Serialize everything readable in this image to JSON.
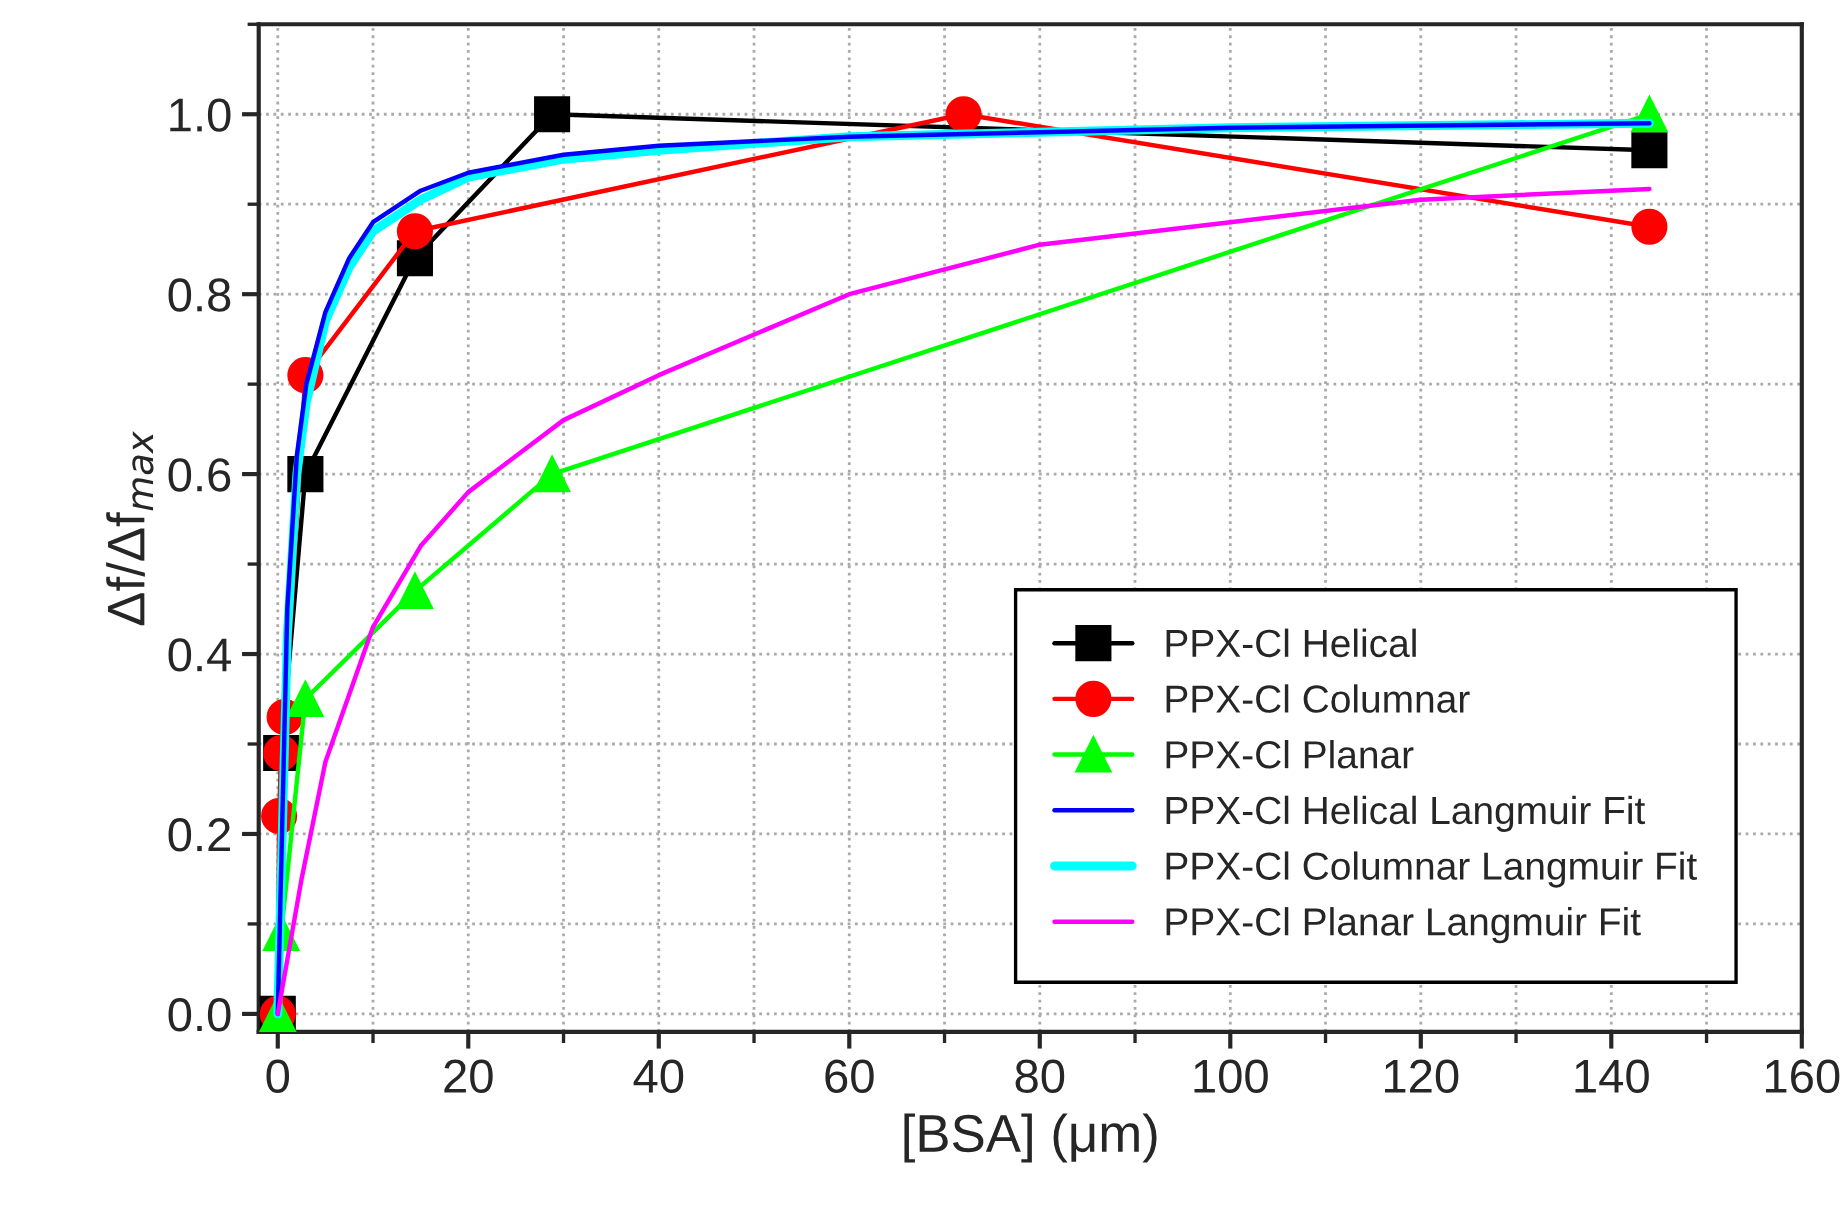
{
  "chart_data": {
    "type": "line",
    "xlabel": "[BSA] (μm)",
    "ylabel": "Δf/Δf$_{max}$",
    "xlim": [
      -2,
      160
    ],
    "ylim": [
      -0.02,
      1.1
    ],
    "xticks": [
      0,
      20,
      40,
      60,
      80,
      100,
      120,
      140,
      160
    ],
    "yticks": [
      {
        "value": 0,
        "label": "0.0"
      },
      {
        "value": 0.2,
        "label": "0.2"
      },
      {
        "value": 0.4,
        "label": "0.4"
      },
      {
        "value": 0.6,
        "label": "0.6"
      },
      {
        "value": 0.8,
        "label": "0.8"
      },
      {
        "value": 1.0,
        "label": "1.0"
      }
    ],
    "grid": true,
    "legend": "bottom right",
    "series": [
      {
        "name": "PPX-Cl Helical",
        "color": "#000000",
        "marker": "square",
        "x": [
          0,
          0.36,
          2.9,
          14.4,
          28.8,
          144
        ],
        "values": [
          0,
          0.29,
          0.6,
          0.84,
          1.0,
          0.96
        ]
      },
      {
        "name": "PPX-Cl Columnar",
        "color": "#ff0000",
        "marker": "circle",
        "x": [
          0,
          0.14,
          0.36,
          0.72,
          2.9,
          14.4,
          72,
          144
        ],
        "values": [
          0,
          0.22,
          0.29,
          0.33,
          0.71,
          0.87,
          1.0,
          0.875
        ]
      },
      {
        "name": "PPX-Cl Planar",
        "color": "#00ff00",
        "marker": "triangle",
        "x": [
          0,
          0.36,
          2.9,
          14.4,
          28.8,
          144
        ],
        "values": [
          0,
          0.09,
          0.35,
          0.47,
          0.6,
          1.0
        ]
      },
      {
        "name": "PPX-Cl Helical Langmuir Fit",
        "color": "#0000ff",
        "marker": "none",
        "x": [
          0,
          1,
          2,
          3,
          5,
          7.5,
          10,
          15,
          20,
          30,
          40,
          60,
          80,
          100,
          144
        ],
        "values": [
          0,
          0.45,
          0.62,
          0.7,
          0.78,
          0.84,
          0.88,
          0.915,
          0.935,
          0.955,
          0.965,
          0.975,
          0.98,
          0.985,
          0.99
        ]
      },
      {
        "name": "PPX-Cl Columnar Langmuir Fit",
        "color": "#00ffff",
        "marker": "none",
        "x": [
          0,
          1,
          2,
          3,
          5,
          7.5,
          10,
          15,
          20,
          30,
          40,
          60,
          80,
          100,
          144
        ],
        "values": [
          0,
          0.42,
          0.6,
          0.68,
          0.77,
          0.83,
          0.87,
          0.905,
          0.93,
          0.95,
          0.96,
          0.975,
          0.98,
          0.985,
          0.99
        ]
      },
      {
        "name": "PPX-Cl Planar Langmuir Fit",
        "color": "#ff00ff",
        "marker": "none",
        "x": [
          0,
          1,
          2.5,
          5,
          10,
          15,
          20,
          30,
          40,
          60,
          80,
          100,
          120,
          144
        ],
        "values": [
          0,
          0.06,
          0.15,
          0.28,
          0.43,
          0.52,
          0.58,
          0.66,
          0.71,
          0.8,
          0.855,
          0.88,
          0.905,
          0.917
        ]
      }
    ]
  }
}
